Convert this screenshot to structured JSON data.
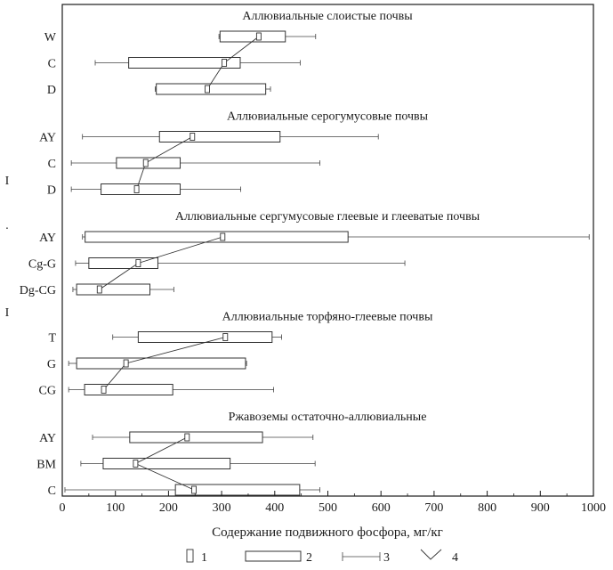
{
  "chart_data": {
    "type": "box",
    "xlabel": "Содержание подвижного фосфора, мг/кг",
    "xlim": [
      0,
      1000
    ],
    "xticks": [
      0,
      100,
      200,
      300,
      400,
      500,
      600,
      700,
      800,
      900,
      1000
    ],
    "groups": [
      {
        "title": "Аллювиальные слоистые почвы",
        "horizons": [
          {
            "label": "W",
            "min": 295,
            "q1": 297,
            "median": 370,
            "q3": 420,
            "max": 477
          },
          {
            "label": "C",
            "min": 62,
            "q1": 125,
            "median": 305,
            "q3": 335,
            "max": 448
          },
          {
            "label": "D",
            "min": 175,
            "q1": 177,
            "median": 273,
            "q3": 383,
            "max": 392
          }
        ]
      },
      {
        "title": "Аллювиальные серогумусовые почвы",
        "horizons": [
          {
            "label": "AY",
            "min": 38,
            "q1": 183,
            "median": 245,
            "q3": 410,
            "max": 595
          },
          {
            "label": "C",
            "min": 17,
            "q1": 102,
            "median": 157,
            "q3": 222,
            "max": 485
          },
          {
            "label": "D",
            "min": 17,
            "q1": 73,
            "median": 140,
            "q3": 222,
            "max": 336
          }
        ]
      },
      {
        "title": "Аллювиальные сергумусовые глеевые и глееватые почвы",
        "horizons": [
          {
            "label": "AY",
            "min": 38,
            "q1": 43,
            "median": 302,
            "q3": 538,
            "max": 992
          },
          {
            "label": "Cg-G",
            "min": 25,
            "q1": 50,
            "median": 143,
            "q3": 180,
            "max": 645
          },
          {
            "label": "Dg-CG",
            "min": 20,
            "q1": 27,
            "median": 70,
            "q3": 165,
            "max": 210
          }
        ]
      },
      {
        "title": "Аллювиальные торфяно-глеевые почвы",
        "horizons": [
          {
            "label": "T",
            "min": 95,
            "q1": 143,
            "median": 307,
            "q3": 395,
            "max": 413
          },
          {
            "label": "G",
            "min": 12,
            "q1": 27,
            "median": 120,
            "q3": 345,
            "max": 347
          },
          {
            "label": "CG",
            "min": 12,
            "q1": 42,
            "median": 78,
            "q3": 208,
            "max": 398
          }
        ]
      },
      {
        "title": "Ржавоземы остаточно-аллювиальные",
        "horizons": [
          {
            "label": "AY",
            "min": 57,
            "q1": 127,
            "median": 235,
            "q3": 377,
            "max": 472
          },
          {
            "label": "BM",
            "min": 35,
            "q1": 77,
            "median": 138,
            "q3": 316,
            "max": 476
          },
          {
            "label": "C",
            "min": 5,
            "q1": 213,
            "median": 248,
            "q3": 447,
            "max": 485
          }
        ]
      }
    ],
    "legend": [
      {
        "symbol": "median",
        "label": "1"
      },
      {
        "symbol": "box",
        "label": "2"
      },
      {
        "symbol": "whisker",
        "label": "3"
      },
      {
        "symbol": "trend",
        "label": "4"
      }
    ],
    "side_marks": [
      "I",
      "·",
      "I"
    ]
  }
}
